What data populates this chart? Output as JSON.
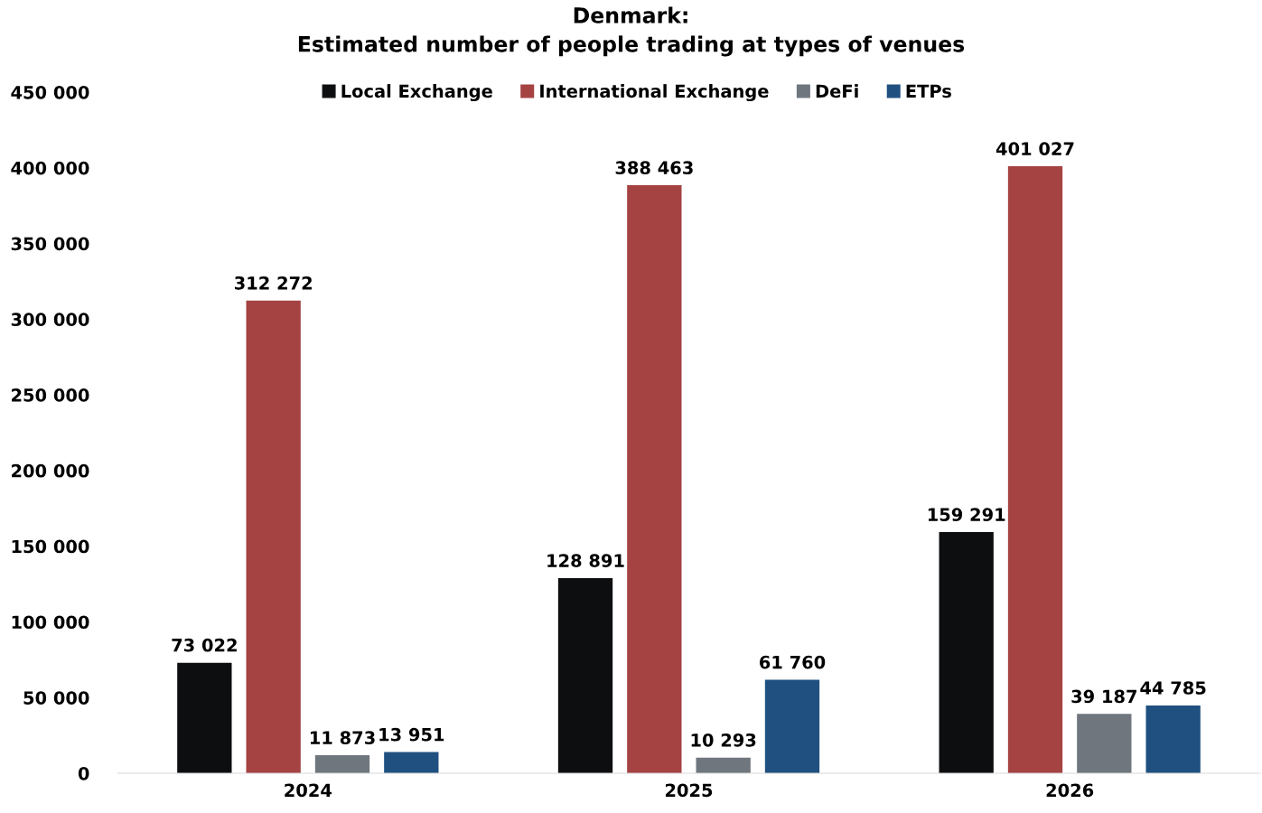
{
  "chart_data": {
    "type": "bar",
    "title": "Denmark:\nEstimated number of people trading at types of venues",
    "categories": [
      "2024",
      "2025",
      "2026"
    ],
    "series": [
      {
        "name": "Local Exchange",
        "color": "#0d0e10",
        "values": [
          73022,
          128891,
          159291
        ],
        "value_labels": [
          "73 022",
          "128 891",
          "159 291"
        ]
      },
      {
        "name": "International Exchange",
        "color": "#a54242",
        "values": [
          312272,
          388463,
          401027
        ],
        "value_labels": [
          "312 272",
          "388 463",
          "401 027"
        ]
      },
      {
        "name": "DeFi",
        "color": "#6f767e",
        "values": [
          11873,
          10293,
          39187
        ],
        "value_labels": [
          "11 873",
          "10 293",
          "39 187"
        ]
      },
      {
        "name": "ETPs",
        "color": "#1f5080",
        "values": [
          13951,
          61760,
          44785
        ],
        "value_labels": [
          "13 951",
          "61 760",
          "44 785"
        ]
      }
    ],
    "ylim": [
      0,
      450000
    ],
    "yticks": [
      {
        "value": 0,
        "label": "0"
      },
      {
        "value": 50000,
        "label": "50 000"
      },
      {
        "value": 100000,
        "label": "100 000"
      },
      {
        "value": 150000,
        "label": "150 000"
      },
      {
        "value": 200000,
        "label": "200 000"
      },
      {
        "value": 250000,
        "label": "250 000"
      },
      {
        "value": 300000,
        "label": "300 000"
      },
      {
        "value": 350000,
        "label": "350 000"
      },
      {
        "value": 400000,
        "label": "400 000"
      },
      {
        "value": 450000,
        "label": "450 000"
      }
    ],
    "grid": false,
    "legend": "top"
  }
}
